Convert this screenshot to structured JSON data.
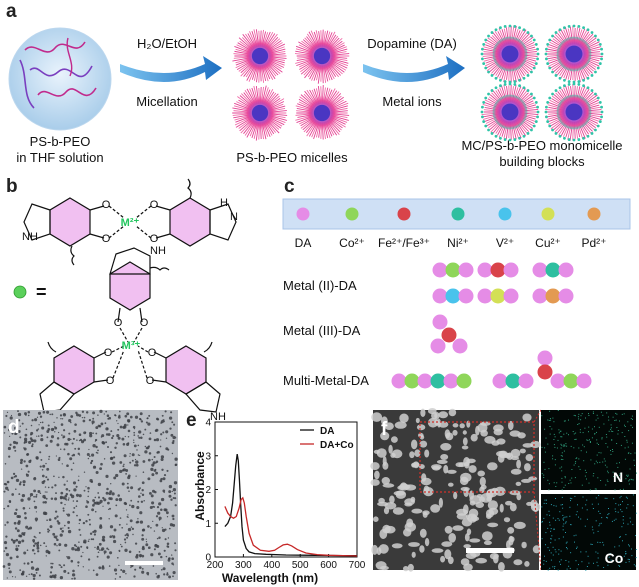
{
  "panel_labels": [
    "a",
    "b",
    "c",
    "d",
    "e",
    "f"
  ],
  "panel_a": {
    "step1_top": "H₂O/EtOH",
    "step1_bottom": "Micellation",
    "step2_top": "Dopamine (DA)",
    "step2_bottom": "Metal ions",
    "label_start_line1": "PS-b-PEO",
    "label_start_line2": "in THF solution",
    "label_mid": "PS-b-PEO micelles",
    "label_end_line1": "MC/PS-b-PEO monomicelle",
    "label_end_line2": "building blocks"
  },
  "panel_b": {
    "equals": "=",
    "metal_2": "M²⁺",
    "metal_3": "M³⁺",
    "atom_o": "O",
    "atom_nh": "NH",
    "atom_h": "H",
    "atom_n": "N"
  },
  "panel_c": {
    "legend": [
      {
        "label": "DA",
        "color": "#e58ce6"
      },
      {
        "label": "Co²⁺",
        "color": "#8fd65a"
      },
      {
        "label": "Fe²⁺/Fe³⁺",
        "color": "#d9434a"
      },
      {
        "label": "Ni²⁺",
        "color": "#2ebfa0"
      },
      {
        "label": "V²⁺",
        "color": "#49c3ec"
      },
      {
        "label": "Cu²⁺",
        "color": "#d3e056"
      },
      {
        "label": "Pd²⁺",
        "color": "#e39a52"
      }
    ],
    "rows": [
      "Metal (II)-DA",
      "Metal (III)-DA",
      "Multi-Metal-DA"
    ]
  },
  "panel_f": {
    "map_labels": [
      "N",
      "Co"
    ]
  },
  "chart_data": {
    "type": "line",
    "xlabel": "Wavelength (nm)",
    "ylabel": "Absorbance",
    "xlim": [
      200,
      700
    ],
    "ylim": [
      0,
      4
    ],
    "xticks": [
      200,
      300,
      400,
      500,
      600,
      700
    ],
    "yticks": [
      0,
      1,
      2,
      3,
      4
    ],
    "legend_position": "top-right",
    "series": [
      {
        "name": "DA",
        "color": "#111111",
        "x": [
          235,
          245,
          255,
          262,
          268,
          273,
          278,
          282,
          286,
          290,
          295,
          300,
          310,
          320,
          340,
          380,
          450,
          550,
          650,
          700
        ],
        "y": [
          0.9,
          1.0,
          1.2,
          1.6,
          2.2,
          2.7,
          3.05,
          2.85,
          2.3,
          1.6,
          0.9,
          0.5,
          0.25,
          0.15,
          0.1,
          0.08,
          0.06,
          0.05,
          0.04,
          0.04
        ]
      },
      {
        "name": "DA+Co",
        "color": "#c62828",
        "x": [
          235,
          245,
          255,
          265,
          275,
          285,
          292,
          298,
          303,
          310,
          320,
          335,
          360,
          390,
          410,
          425,
          440,
          455,
          470,
          490,
          520,
          560,
          600,
          650,
          700
        ],
        "y": [
          1.5,
          1.3,
          1.2,
          1.15,
          1.2,
          1.45,
          1.7,
          1.75,
          1.6,
          1.2,
          0.7,
          0.35,
          0.2,
          0.17,
          0.2,
          0.28,
          0.36,
          0.38,
          0.33,
          0.22,
          0.12,
          0.07,
          0.05,
          0.04,
          0.03
        ]
      }
    ]
  }
}
